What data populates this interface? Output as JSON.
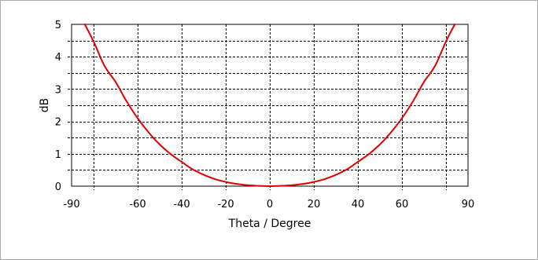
{
  "chart_data": {
    "type": "line",
    "title": "",
    "xlabel": "Theta / Degree",
    "ylabel": "dB",
    "xlim": [
      -90,
      90
    ],
    "ylim": [
      0,
      5
    ],
    "x_ticks": [
      -90,
      -60,
      -40,
      -20,
      0,
      20,
      40,
      60,
      90
    ],
    "y_ticks": [
      0,
      1,
      2,
      3,
      4,
      5
    ],
    "x_grid": [
      -80,
      -60,
      -40,
      -20,
      0,
      20,
      40,
      60,
      80
    ],
    "y_grid": [
      0.5,
      1,
      1.5,
      2,
      2.5,
      3,
      3.5,
      4,
      4.5
    ],
    "grid": true,
    "grid_style": "dashed",
    "legend": "none",
    "series": [
      {
        "color": "#e00000",
        "x": [
          -84,
          -80,
          -75,
          -70,
          -65,
          -60,
          -55,
          -50,
          -45,
          -40,
          -35,
          -30,
          -25,
          -20,
          -15,
          -10,
          -5,
          0,
          5,
          10,
          15,
          20,
          25,
          30,
          35,
          40,
          45,
          50,
          55,
          60,
          65,
          70,
          75,
          80,
          84
        ],
        "y": [
          5.0,
          4.47,
          3.71,
          3.22,
          2.62,
          2.1,
          1.66,
          1.29,
          0.99,
          0.75,
          0.52,
          0.35,
          0.22,
          0.13,
          0.07,
          0.03,
          0.01,
          0.0,
          0.01,
          0.03,
          0.07,
          0.13,
          0.22,
          0.35,
          0.52,
          0.75,
          0.99,
          1.29,
          1.66,
          2.1,
          2.62,
          3.22,
          3.71,
          4.47,
          5.0
        ]
      }
    ]
  }
}
